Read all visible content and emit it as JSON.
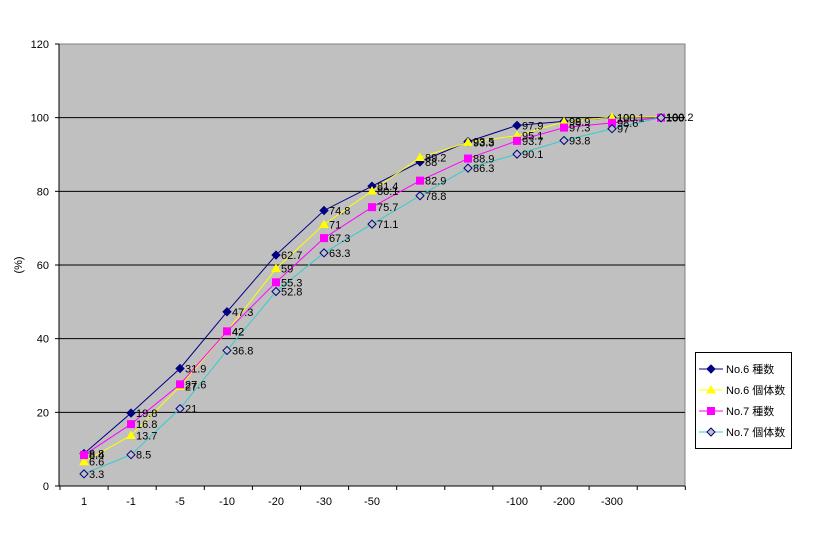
{
  "chart_data": {
    "type": "line",
    "xlabel": "",
    "ylabel": "(%)",
    "ylim": [
      0,
      120
    ],
    "yticks": [
      "0",
      "20",
      "40",
      "60",
      "80",
      "100",
      "120"
    ],
    "grid": true,
    "legend_position": "right",
    "x_tick_labels": [
      "1",
      "-1",
      "-5",
      "-10",
      "-20",
      "-30",
      "-50",
      "",
      "",
      "-100",
      "-200",
      "-300",
      ""
    ],
    "series": [
      {
        "name": "No.6 種数",
        "color": "#000080",
        "marker": "diamond",
        "values": [
          8.8,
          19.8,
          31.9,
          47.3,
          62.7,
          74.8,
          81.4,
          88,
          93.5,
          97.9,
          99,
          100,
          100
        ],
        "labels": [
          "8.8",
          "19.8",
          "31.9",
          "47.3",
          "62.7",
          "74.8",
          "81.4",
          "88",
          "93.5",
          "97.9",
          "99",
          "100",
          "100"
        ]
      },
      {
        "name": "No.6 個体数",
        "color": "#FFFF00",
        "marker": "triangle",
        "values": [
          6.6,
          13.7,
          27,
          42,
          59,
          71,
          80.1,
          89.2,
          93.3,
          95.1,
          98.9,
          100.1,
          100.2
        ],
        "labels": [
          "6.6",
          "13.7",
          "27",
          "42",
          "59",
          "71",
          "80.1",
          "89.2",
          "93.3",
          "95.1",
          "98.9",
          "100.1",
          "100.2"
        ]
      },
      {
        "name": "No.7 種数",
        "color": "#FF00FF",
        "marker": "square",
        "values": [
          8.4,
          16.8,
          27.6,
          42.0,
          55.3,
          67.3,
          75.7,
          82.9,
          88.9,
          93.7,
          97.3,
          98.6,
          100
        ],
        "labels": [
          "8.4",
          "16.8",
          "27.6",
          "42",
          "55.3",
          "67.3",
          "75.7",
          "82.9",
          "88.9",
          "93.7",
          "97.3",
          "98.6",
          "100"
        ]
      },
      {
        "name": "No.7 個体数",
        "color": "#33CCCC",
        "marker": "open-diamond",
        "values": [
          3.3,
          8.5,
          21,
          36.8,
          52.8,
          63.3,
          71.1,
          78.8,
          86.3,
          90.1,
          93.8,
          97,
          100
        ],
        "labels": [
          "3.3",
          "8.5",
          "21",
          "36.8",
          "52.8",
          "63.3",
          "71.1",
          "78.8",
          "86.3",
          "90.1",
          "93.8",
          "97",
          "100"
        ]
      }
    ]
  }
}
